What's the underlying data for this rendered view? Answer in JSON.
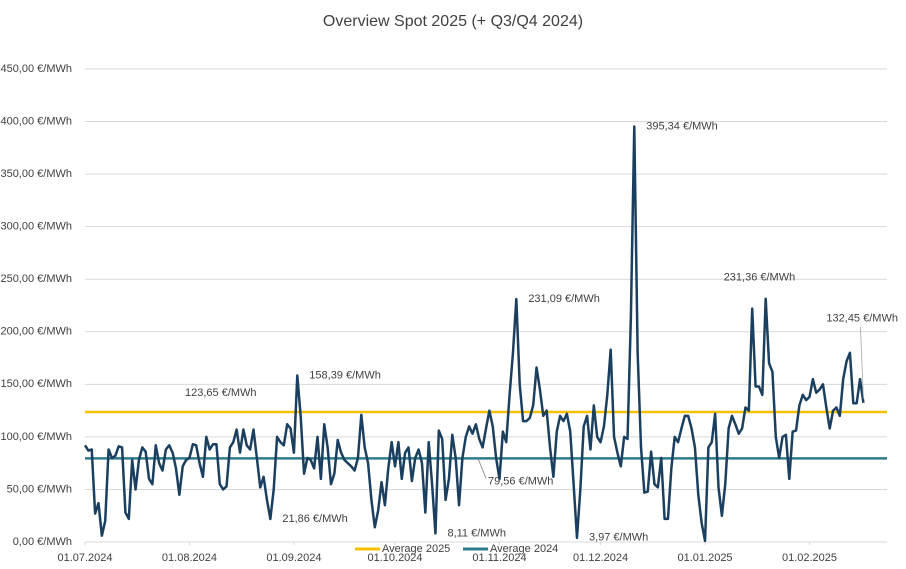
{
  "chart_data": {
    "type": "line",
    "title": "Overview Spot 2025 (+ Q3/Q4 2024)",
    "x": [
      "01.07.2024",
      "02.07.2024",
      "03.07.2024",
      "04.07.2024",
      "05.07.2024",
      "06.07.2024",
      "07.07.2024",
      "08.07.2024",
      "09.07.2024",
      "10.07.2024",
      "11.07.2024",
      "12.07.2024",
      "13.07.2024",
      "14.07.2024",
      "15.07.2024",
      "16.07.2024",
      "17.07.2024",
      "18.07.2024",
      "19.07.2024",
      "20.07.2024",
      "21.07.2024",
      "22.07.2024",
      "23.07.2024",
      "24.07.2024",
      "25.07.2024",
      "26.07.2024",
      "27.07.2024",
      "28.07.2024",
      "29.07.2024",
      "30.07.2024",
      "31.07.2024",
      "01.08.2024",
      "02.08.2024",
      "03.08.2024",
      "04.08.2024",
      "05.08.2024",
      "06.08.2024",
      "07.08.2024",
      "08.08.2024",
      "09.08.2024",
      "10.08.2024",
      "11.08.2024",
      "12.08.2024",
      "13.08.2024",
      "14.08.2024",
      "15.08.2024",
      "16.08.2024",
      "17.08.2024",
      "18.08.2024",
      "19.08.2024",
      "20.08.2024",
      "21.08.2024",
      "22.08.2024",
      "23.08.2024",
      "24.08.2024",
      "25.08.2024",
      "26.08.2024",
      "27.08.2024",
      "28.08.2024",
      "29.08.2024",
      "30.08.2024",
      "31.08.2024",
      "01.09.2024",
      "02.09.2024",
      "03.09.2024",
      "04.09.2024",
      "05.09.2024",
      "06.09.2024",
      "07.09.2024",
      "08.09.2024",
      "09.09.2024",
      "10.09.2024",
      "11.09.2024",
      "12.09.2024",
      "13.09.2024",
      "14.09.2024",
      "15.09.2024",
      "16.09.2024",
      "17.09.2024",
      "18.09.2024",
      "19.09.2024",
      "20.09.2024",
      "21.09.2024",
      "22.09.2024",
      "23.09.2024",
      "24.09.2024",
      "25.09.2024",
      "26.09.2024",
      "27.09.2024",
      "28.09.2024",
      "29.09.2024",
      "30.09.2024",
      "01.10.2024",
      "02.10.2024",
      "03.10.2024",
      "04.10.2024",
      "05.10.2024",
      "06.10.2024",
      "07.10.2024",
      "08.10.2024",
      "09.10.2024",
      "10.10.2024",
      "11.10.2024",
      "12.10.2024",
      "13.10.2024",
      "14.10.2024",
      "15.10.2024",
      "16.10.2024",
      "17.10.2024",
      "18.10.2024",
      "19.10.2024",
      "20.10.2024",
      "21.10.2024",
      "22.10.2024",
      "23.10.2024",
      "24.10.2024",
      "25.10.2024",
      "26.10.2024",
      "27.10.2024",
      "28.10.2024",
      "29.10.2024",
      "30.10.2024",
      "31.10.2024",
      "01.11.2024",
      "02.11.2024",
      "03.11.2024",
      "04.11.2024",
      "05.11.2024",
      "06.11.2024",
      "07.11.2024",
      "08.11.2024",
      "09.11.2024",
      "10.11.2024",
      "11.11.2024",
      "12.11.2024",
      "13.11.2024",
      "14.11.2024",
      "15.11.2024",
      "16.11.2024",
      "17.11.2024",
      "18.11.2024",
      "19.11.2024",
      "20.11.2024",
      "21.11.2024",
      "22.11.2024",
      "23.11.2024",
      "24.11.2024",
      "25.11.2024",
      "26.11.2024",
      "27.11.2024",
      "28.11.2024",
      "29.11.2024",
      "30.11.2024",
      "01.12.2024",
      "02.12.2024",
      "03.12.2024",
      "04.12.2024",
      "05.12.2024",
      "06.12.2024",
      "07.12.2024",
      "08.12.2024",
      "09.12.2024",
      "10.12.2024",
      "11.12.2024",
      "12.12.2024",
      "13.12.2024",
      "14.12.2024",
      "15.12.2024",
      "16.12.2024",
      "17.12.2024",
      "18.12.2024",
      "19.12.2024",
      "20.12.2024",
      "21.12.2024",
      "22.12.2024",
      "23.12.2024",
      "24.12.2024",
      "25.12.2024",
      "26.12.2024",
      "27.12.2024",
      "28.12.2024",
      "29.12.2024",
      "30.12.2024",
      "31.12.2024",
      "01.01.2025",
      "02.01.2025",
      "03.01.2025",
      "04.01.2025",
      "05.01.2025",
      "06.01.2025",
      "07.01.2025",
      "08.01.2025",
      "09.01.2025",
      "10.01.2025",
      "11.01.2025",
      "12.01.2025",
      "13.01.2025",
      "14.01.2025",
      "15.01.2025",
      "16.01.2025",
      "17.01.2025",
      "18.01.2025",
      "19.01.2025",
      "20.01.2025",
      "21.01.2025",
      "22.01.2025",
      "23.01.2025",
      "24.01.2025",
      "25.01.2025",
      "26.01.2025",
      "27.01.2025",
      "28.01.2025",
      "29.01.2025",
      "30.01.2025",
      "31.01.2025",
      "01.02.2025",
      "02.02.2025",
      "03.02.2025",
      "04.02.2025",
      "05.02.2025",
      "06.02.2025",
      "07.02.2025",
      "08.02.2025",
      "09.02.2025",
      "10.02.2025",
      "11.02.2025",
      "12.02.2025",
      "13.02.2025",
      "14.02.2025",
      "15.02.2025",
      "16.02.2025",
      "17.02.2025"
    ],
    "series": [
      {
        "name": "Spot",
        "color": "#1b3f5e",
        "values": [
          92,
          87,
          88,
          27,
          37,
          6,
          20,
          88,
          80,
          82,
          91,
          90,
          28,
          22,
          78,
          50,
          78,
          90,
          86,
          60,
          55,
          92,
          75,
          68,
          88,
          92,
          85,
          70,
          45,
          72,
          78,
          80,
          93,
          92,
          75,
          62,
          100,
          88,
          93,
          93,
          55,
          50,
          53,
          90,
          95,
          107,
          85,
          107,
          92,
          88,
          107,
          80,
          52,
          62,
          40,
          21.86,
          50,
          100,
          95,
          92,
          112,
          108,
          85,
          158.39,
          120,
          65,
          80,
          78,
          70,
          100,
          60,
          112,
          90,
          55,
          65,
          97,
          85,
          78,
          75,
          72,
          68,
          80,
          121,
          90,
          75,
          40,
          14,
          30,
          57,
          35,
          70,
          95,
          72,
          95,
          60,
          85,
          90,
          58,
          80,
          88,
          75,
          28,
          95,
          55,
          8.11,
          106,
          98,
          40,
          60,
          102,
          80,
          35,
          80,
          100,
          110,
          103,
          112,
          98,
          90,
          108,
          125,
          110,
          80,
          60,
          105,
          95,
          140,
          180,
          231.09,
          150,
          115,
          115,
          118,
          130,
          166,
          145,
          120,
          125,
          90,
          62,
          105,
          120,
          115,
          122,
          105,
          55,
          3.97,
          50,
          110,
          120,
          88,
          130,
          100,
          95,
          110,
          140,
          183,
          100,
          85,
          72,
          100,
          98,
          215,
          395.34,
          180,
          90,
          47,
          48,
          86,
          55,
          52,
          80,
          22,
          22,
          70,
          100,
          95,
          108,
          120,
          120,
          108,
          90,
          45,
          18,
          1,
          90,
          95,
          122,
          52,
          25,
          55,
          108,
          120,
          112,
          103,
          108,
          128,
          125,
          222,
          148,
          148,
          140,
          231.36,
          170,
          162,
          100,
          80,
          100,
          102,
          60,
          105,
          106,
          130,
          140,
          135,
          138,
          155,
          142,
          145,
          150,
          128,
          108,
          125,
          128,
          120,
          155,
          172,
          180,
          132,
          132,
          155,
          132.45
        ]
      }
    ],
    "reference_lines": [
      {
        "name": "Average 2025",
        "value": 123.65,
        "label": "123,65 €/MWh",
        "color": "#f5c000",
        "label_color": "#f0b400"
      },
      {
        "name": "Average 2024",
        "value": 79.56,
        "label": "79,56 €/MWh",
        "color": "#2f7a8f",
        "label_color": "#2e74b5"
      }
    ],
    "annotations": [
      {
        "x": "02.09.2024",
        "value": 158.39,
        "label": "158,39 €/MWh"
      },
      {
        "x": "25.08.2024",
        "value": 21.86,
        "label": "21,86 €/MWh"
      },
      {
        "x": "13.10.2024",
        "value": 8.11,
        "label": "8,11 €/MWh"
      },
      {
        "x": "06.11.2024",
        "value": 231.09,
        "label": "231,09 €/MWh"
      },
      {
        "x": "24.11.2024",
        "value": 3.97,
        "label": "3,97 €/MWh"
      },
      {
        "x": "11.12.2024",
        "value": 395.34,
        "label": "395,34 €/MWh"
      },
      {
        "x": "19.01.2025",
        "value": 231.36,
        "label": "231,36 €/MWh"
      },
      {
        "x": "17.02.2025",
        "value": 132.45,
        "label": "132,45 €/MWh"
      }
    ],
    "xlim": [
      "01.07.2024",
      "24.02.2025"
    ],
    "xticks": [
      "01.07.2024",
      "01.08.2024",
      "01.09.2024",
      "01.10.2024",
      "01.11.2024",
      "01.12.2024",
      "01.01.2025",
      "01.02.2025"
    ],
    "ylim": [
      0,
      450
    ],
    "yticks": [
      {
        "value": 0,
        "label": "0,00 €/MWh"
      },
      {
        "value": 50,
        "label": "50,00 €/MWh"
      },
      {
        "value": 100,
        "label": "100,00 €/MWh"
      },
      {
        "value": 150,
        "label": "150,00 €/MWh"
      },
      {
        "value": 200,
        "label": "200,00 €/MWh"
      },
      {
        "value": 250,
        "label": "250,00 €/MWh"
      },
      {
        "value": 300,
        "label": "300,00 €/MWh"
      },
      {
        "value": 350,
        "label": "350,00 €/MWh"
      },
      {
        "value": 400,
        "label": "400,00 €/MWh"
      },
      {
        "value": 450,
        "label": "450,00 €/MWh"
      }
    ],
    "grid": true
  }
}
